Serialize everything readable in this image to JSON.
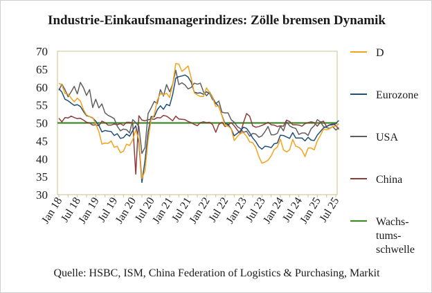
{
  "chart_data": {
    "type": "line",
    "title": "Industrie-Einkaufsmanagerindizes:  Zölle bremsen Dynamik",
    "source": "Quelle: HSBC, ISM, China Federation of Logistics & Purchasing, Markit",
    "ylim": [
      30,
      70
    ],
    "yticks": [
      "30",
      "35",
      "40",
      "45",
      "50",
      "55",
      "60",
      "65",
      "70"
    ],
    "x_start": "2018-01",
    "xtick_labels": [
      "Jan 18",
      "Jul 18",
      "Jan 19",
      "Jul 19",
      "Jan 20",
      "Jul 20",
      "Jan 21",
      "Jul 21",
      "Jan 22",
      "Jul 22",
      "Jan 23",
      "Jul 23",
      "Jan 24",
      "Jul 24",
      "Jan 25",
      "Jul 25"
    ],
    "legend_position": "right",
    "colors": {
      "D": "#f5a21b",
      "Eurozone": "#1f4e79",
      "USA": "#5e5e5e",
      "China": "#8c3b37",
      "Wachstumsschwelle": "#3f8a2c"
    },
    "threshold": {
      "name": "Wachs-\ntums-\nschwelle",
      "value": 50
    },
    "series": [
      {
        "name": "D",
        "values": [
          61.1,
          60.6,
          58.2,
          58.1,
          56.9,
          55.9,
          56.9,
          56.1,
          53.7,
          52.2,
          51.8,
          51.5,
          49.7,
          47.6,
          44.1,
          44.4,
          44.3,
          45.0,
          43.2,
          43.5,
          41.7,
          42.1,
          44.1,
          43.7,
          45.3,
          48.0,
          45.4,
          34.5,
          36.6,
          45.2,
          51.0,
          52.2,
          56.4,
          58.2,
          57.8,
          58.3,
          57.1,
          60.7,
          66.6,
          66.4,
          64.4,
          65.1,
          65.9,
          62.6,
          58.4,
          57.8,
          57.4,
          57.4,
          59.8,
          58.4,
          56.9,
          54.6,
          54.8,
          52.0,
          49.3,
          49.1,
          48.4,
          45.1,
          46.2,
          47.1,
          47.3,
          46.3,
          44.7,
          44.5,
          43.2,
          40.6,
          38.8,
          39.1,
          39.6,
          40.8,
          42.6,
          43.3,
          45.5,
          42.5,
          41.9,
          42.5,
          45.4,
          43.5,
          43.2,
          42.4,
          40.6,
          43.0,
          43.0,
          42.5,
          45.0,
          46.5,
          48.3,
          48.1,
          48.4,
          49.0,
          49.1,
          49.8
        ]
      },
      {
        "name": "Eurozone",
        "values": [
          59.6,
          58.6,
          56.6,
          56.2,
          55.5,
          54.9,
          55.1,
          54.6,
          53.2,
          52.0,
          51.8,
          51.4,
          50.5,
          49.3,
          47.5,
          47.9,
          47.7,
          47.6,
          46.5,
          47.0,
          45.7,
          45.9,
          46.9,
          46.3,
          47.9,
          49.2,
          44.5,
          33.4,
          39.4,
          47.4,
          51.8,
          51.7,
          53.7,
          54.8,
          53.8,
          55.2,
          54.8,
          57.9,
          62.5,
          62.9,
          63.1,
          63.4,
          62.8,
          61.4,
          58.6,
          58.3,
          58.4,
          58.0,
          58.7,
          58.2,
          56.5,
          55.5,
          54.6,
          52.1,
          49.8,
          49.6,
          48.4,
          46.4,
          47.1,
          47.8,
          48.8,
          48.5,
          47.3,
          45.8,
          44.8,
          43.4,
          42.7,
          43.5,
          43.4,
          43.1,
          44.2,
          44.4,
          46.6,
          46.5,
          46.1,
          45.7,
          47.3,
          45.8,
          45.8,
          45.8,
          45.0,
          46.0,
          45.2,
          45.1,
          46.6,
          47.6,
          48.6,
          49.0,
          49.4,
          49.5,
          49.8,
          50.7
        ]
      },
      {
        "name": "USA",
        "values": [
          59.1,
          60.8,
          59.3,
          57.3,
          58.7,
          60.2,
          58.1,
          61.3,
          59.8,
          57.7,
          59.3,
          54.3,
          56.6,
          54.2,
          55.3,
          52.8,
          52.1,
          51.7,
          51.2,
          49.1,
          47.8,
          48.3,
          48.1,
          47.2,
          50.9,
          50.1,
          49.1,
          41.5,
          43.1,
          52.6,
          54.2,
          56.0,
          55.4,
          59.3,
          57.5,
          60.7,
          58.7,
          60.8,
          64.7,
          60.7,
          61.2,
          60.6,
          59.5,
          59.9,
          61.1,
          60.8,
          61.1,
          58.7,
          57.6,
          58.6,
          57.1,
          55.4,
          56.1,
          53.0,
          52.8,
          52.8,
          50.9,
          50.2,
          49.0,
          48.4,
          47.4,
          47.7,
          46.3,
          47.1,
          46.9,
          46.0,
          46.4,
          47.6,
          49.0,
          46.7,
          46.7,
          47.1,
          49.1,
          47.8,
          50.3,
          49.2,
          48.7,
          48.5,
          46.8,
          47.2,
          47.2,
          46.5,
          48.4,
          49.2,
          50.9,
          50.3,
          49.0,
          48.7,
          48.5,
          49.0,
          48.0,
          48.7
        ]
      },
      {
        "name": "China",
        "values": [
          51.3,
          50.3,
          51.5,
          51.4,
          51.9,
          51.5,
          51.2,
          51.3,
          50.8,
          50.2,
          50.0,
          49.4,
          49.5,
          49.2,
          50.5,
          50.1,
          49.4,
          49.4,
          49.7,
          49.5,
          49.8,
          49.3,
          50.2,
          50.2,
          50.0,
          35.7,
          52.0,
          50.8,
          50.6,
          50.9,
          51.1,
          51.0,
          51.5,
          51.4,
          52.1,
          51.9,
          51.3,
          50.6,
          51.9,
          51.1,
          51.0,
          50.9,
          50.4,
          50.1,
          49.6,
          49.2,
          50.1,
          50.3,
          50.1,
          50.2,
          49.5,
          47.4,
          49.6,
          50.2,
          49.0,
          49.4,
          50.1,
          49.2,
          48.0,
          47.0,
          50.1,
          52.6,
          51.9,
          49.2,
          48.8,
          49.0,
          49.3,
          49.7,
          50.2,
          49.5,
          49.4,
          49.0,
          49.2,
          49.1,
          50.8,
          50.4,
          49.5,
          49.5,
          49.4,
          49.1,
          49.8,
          50.1,
          50.3,
          50.1,
          49.1,
          50.2,
          50.5,
          49.0,
          49.5,
          49.7,
          49.3,
          48.2
        ]
      }
    ]
  }
}
